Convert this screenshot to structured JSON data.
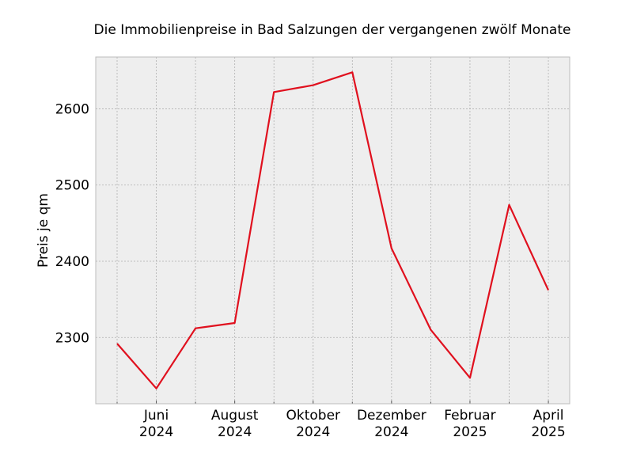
{
  "chart_data": {
    "type": "line",
    "title": "Die Immobilienpreise in Bad Salzungen der vergangenen zwölf Monate",
    "ylabel": "Preis je qm",
    "xlabel": "",
    "x": [
      "2024-05",
      "2024-06",
      "2024-07",
      "2024-08",
      "2024-09",
      "2024-10",
      "2024-11",
      "2024-12",
      "2025-01",
      "2025-02",
      "2025-03",
      "2025-04"
    ],
    "series": [
      {
        "values": [
          2292,
          2233,
          2312,
          2319,
          2622,
          2631,
          2648,
          2417,
          2310,
          2247,
          2474,
          2362
        ]
      }
    ],
    "ylim": [
      2213,
      2668
    ],
    "yticks": [
      2300,
      2400,
      2500,
      2600
    ],
    "xticks": [
      {
        "x": "2024-06",
        "label": "Juni",
        "year": "2024"
      },
      {
        "x": "2024-08",
        "label": "August",
        "year": "2024"
      },
      {
        "x": "2024-10",
        "label": "Oktober",
        "year": "2024"
      },
      {
        "x": "2024-12",
        "label": "Dezember",
        "year": "2024"
      },
      {
        "x": "2025-02",
        "label": "Februar",
        "year": "2025"
      },
      {
        "x": "2025-04",
        "label": "April",
        "year": "2025"
      }
    ],
    "grid": true,
    "colors": {
      "line": "#e0101e",
      "plot_background": "#eeeeee",
      "grid": "#b0b0b0",
      "frame": "#bcbcbc"
    }
  }
}
